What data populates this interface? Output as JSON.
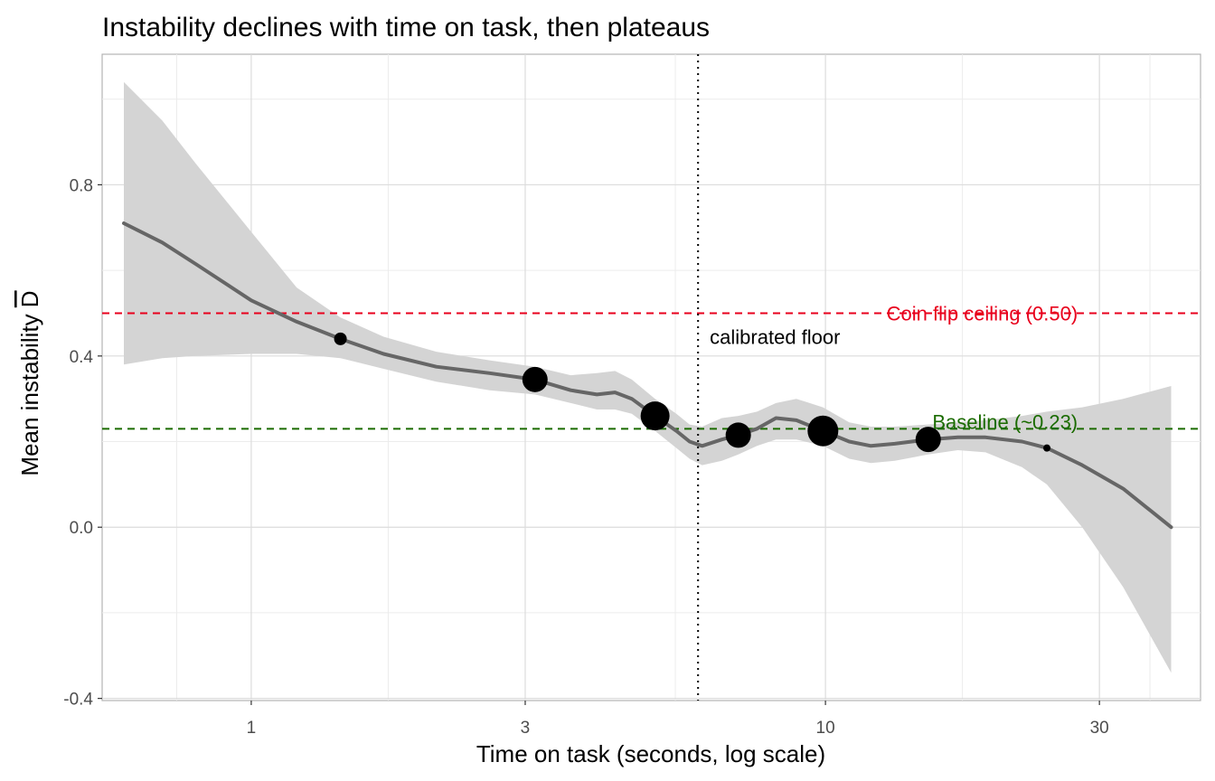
{
  "chart_data": {
    "type": "scatter",
    "title": "Instability declines with time on task, then plateaus",
    "xlabel": "Time on task (seconds, log scale)",
    "ylabel": "Mean instability D",
    "ylabel_overline_symbol": "D",
    "x_scale": "log10",
    "xlim": [
      0.55,
      45
    ],
    "ylim": [
      -0.405,
      1.105
    ],
    "x_ticks": [
      1,
      3,
      10,
      30
    ],
    "x_tick_labels": [
      "1",
      "3",
      "10",
      "30"
    ],
    "y_ticks": [
      -0.4,
      0.0,
      0.4,
      0.8
    ],
    "y_tick_labels": [
      "-0.4",
      "0.0",
      "0.4",
      "0.8"
    ],
    "grid": true,
    "colors": {
      "points": "#000000",
      "smooth": "#666666",
      "ribbon": "#d4d4d4",
      "ceiling": "#e8001c",
      "baseline": "#1a6b00",
      "vline": "#000000"
    },
    "points": [
      {
        "x": 1.43,
        "y": 0.44,
        "size": 7
      },
      {
        "x": 3.12,
        "y": 0.345,
        "size": 14
      },
      {
        "x": 5.05,
        "y": 0.26,
        "size": 16
      },
      {
        "x": 7.05,
        "y": 0.215,
        "size": 14
      },
      {
        "x": 9.9,
        "y": 0.225,
        "size": 17
      },
      {
        "x": 15.1,
        "y": 0.205,
        "size": 14
      },
      {
        "x": 24.3,
        "y": 0.185,
        "size": 4
      }
    ],
    "smooth": {
      "x": [
        0.6,
        0.7,
        0.8,
        1.0,
        1.2,
        1.43,
        1.7,
        2.1,
        2.6,
        3.12,
        3.6,
        4.0,
        4.3,
        4.6,
        5.05,
        5.5,
        5.8,
        6.1,
        6.6,
        7.05,
        7.6,
        8.2,
        8.9,
        9.9,
        11.0,
        12.0,
        13.2,
        15.1,
        17.0,
        19.0,
        22.0,
        24.3,
        28.0,
        33.0,
        40.0
      ],
      "y": [
        0.71,
        0.665,
        0.615,
        0.53,
        0.48,
        0.44,
        0.405,
        0.375,
        0.36,
        0.345,
        0.32,
        0.31,
        0.315,
        0.3,
        0.26,
        0.225,
        0.2,
        0.19,
        0.205,
        0.215,
        0.23,
        0.255,
        0.25,
        0.225,
        0.2,
        0.19,
        0.195,
        0.205,
        0.21,
        0.21,
        0.2,
        0.185,
        0.145,
        0.09,
        0.0
      ],
      "lower": [
        0.38,
        0.395,
        0.4,
        0.405,
        0.405,
        0.395,
        0.37,
        0.34,
        0.32,
        0.31,
        0.29,
        0.275,
        0.275,
        0.265,
        0.225,
        0.185,
        0.16,
        0.145,
        0.155,
        0.17,
        0.19,
        0.205,
        0.205,
        0.19,
        0.16,
        0.15,
        0.155,
        0.17,
        0.18,
        0.175,
        0.14,
        0.1,
        0.0,
        -0.14,
        -0.34
      ],
      "upper": [
        1.04,
        0.95,
        0.85,
        0.69,
        0.56,
        0.49,
        0.445,
        0.41,
        0.39,
        0.375,
        0.355,
        0.36,
        0.365,
        0.345,
        0.3,
        0.265,
        0.24,
        0.235,
        0.255,
        0.26,
        0.27,
        0.29,
        0.3,
        0.28,
        0.245,
        0.235,
        0.235,
        0.24,
        0.245,
        0.25,
        0.26,
        0.27,
        0.28,
        0.3,
        0.33
      ]
    },
    "hlines": [
      {
        "y": 0.5,
        "label": "Coin flip ceiling (0.50)",
        "color": "#e8001c",
        "linetype": "dashed"
      },
      {
        "y": 0.23,
        "label": "Baseline (~0.23)",
        "color": "#1a6b00",
        "linetype": "dashed"
      }
    ],
    "vline": {
      "x": 6.0,
      "label": "calibrated floor",
      "linetype": "dotted"
    }
  }
}
